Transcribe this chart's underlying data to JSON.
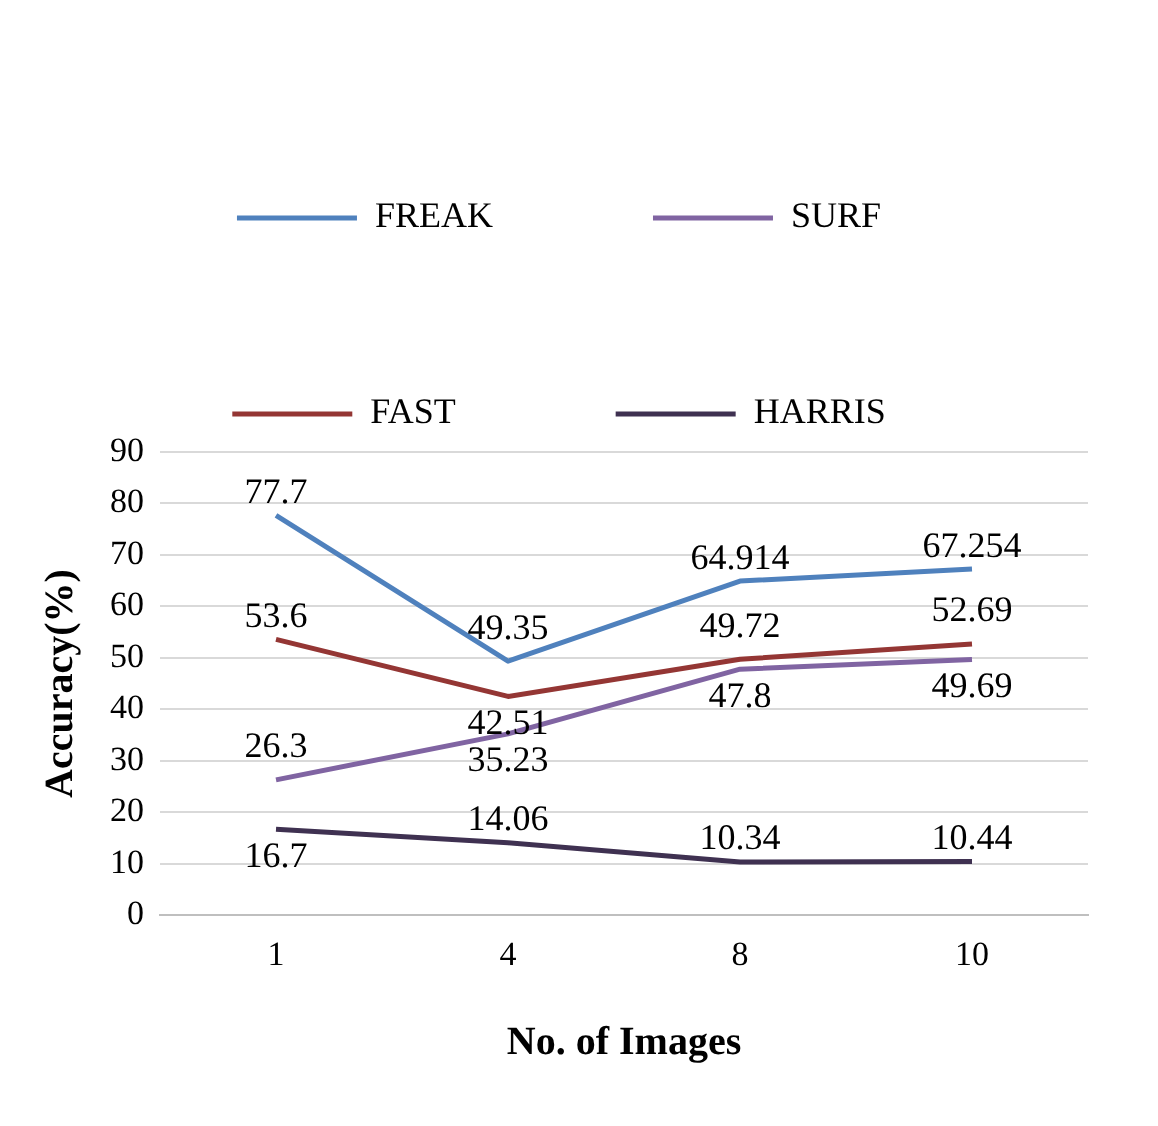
{
  "chart_data": {
    "type": "line",
    "xlabel": "No. of Images",
    "ylabel": "Accuracy(%)",
    "categories": [
      "1",
      "4",
      "8",
      "10"
    ],
    "series": [
      {
        "name": "FREAK",
        "color": "#4f81bd",
        "values": [
          77.7,
          49.35,
          64.914,
          67.254
        ]
      },
      {
        "name": "SURF",
        "color": "#8064a2",
        "values": [
          26.3,
          35.23,
          47.8,
          49.69
        ]
      },
      {
        "name": "FAST",
        "color": "#943634",
        "values": [
          53.6,
          42.51,
          49.72,
          52.69
        ]
      },
      {
        "name": "HARRIS",
        "color": "#3f3151",
        "values": [
          16.7,
          14.06,
          10.34,
          10.44
        ]
      }
    ],
    "ylim": [
      0,
      90
    ],
    "yticks": [
      0,
      10,
      20,
      30,
      40,
      50,
      60,
      70,
      80,
      90
    ],
    "grid": "y",
    "legend": "top",
    "data_labels": true,
    "marker": "none",
    "line_style": "solid"
  }
}
